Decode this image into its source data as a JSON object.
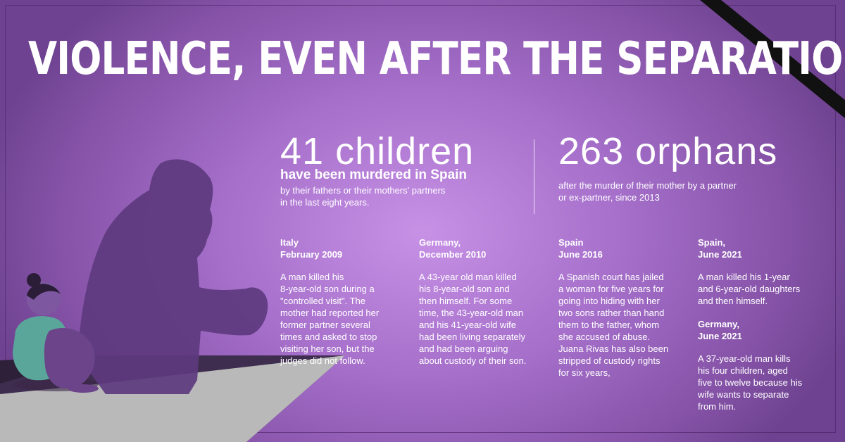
{
  "title": "VIOLENCE, EVEN AFTER THE SEPARATION",
  "stats": {
    "children": {
      "number": "41 children",
      "headline": "have been murdered in Spain",
      "detail_lines": [
        "by their fathers or their mothers' partners",
        "in the last eight years."
      ]
    },
    "orphans": {
      "number": "263 orphans",
      "detail_lines": [
        "after the murder of their mother by a partner",
        "or ex-partner, since 2013"
      ]
    }
  },
  "cases": [
    {
      "heading_lines": [
        "Italy",
        "February 2009"
      ],
      "body_lines": [
        "A man killed his",
        "8-year-old son during a",
        "\"controlled visit\". The",
        "mother had reported her",
        "former partner several",
        "times and asked to stop",
        "visiting her son, but the",
        "judges did not follow."
      ]
    },
    {
      "heading_lines": [
        "Germany,",
        "December 2010"
      ],
      "body_lines": [
        "A 43-year old man killed",
        "his 8-year-old son and",
        "then himself. For some",
        "time, the 43-year-old man",
        "and his 41-year-old wife",
        "had been living separately",
        "and had been arguing",
        "about custody of their son."
      ]
    },
    {
      "heading_lines": [
        "Spain",
        "June 2016"
      ],
      "body_lines": [
        "A Spanish court has jailed",
        "a woman for five years for",
        "going into hiding with her",
        "two sons rather than hand",
        "them to the father, whom",
        "she accused of abuse.",
        "Juana Rivas has also been",
        "stripped of custody rights",
        "for six years,"
      ]
    },
    {
      "heading_lines": [
        "Spain,",
        "June 2021"
      ],
      "body_lines": [
        "A man killed his 1-year",
        "and 6-year-old daughters",
        "and then himself."
      ]
    },
    {
      "heading_lines": [
        "Germany,",
        "June 2021"
      ],
      "body_lines": [
        "A 37-year-old man kills",
        "his four children, aged",
        "five to twelve because his",
        "wife wants to separate",
        "from him."
      ]
    }
  ],
  "colors": {
    "background_center": "#c791e6",
    "background_edge": "#6e4290",
    "shadow": "#5d3a7e",
    "mourning_ribbon": "#111111",
    "floor": "#b9b9b9",
    "floor_dark": "#3f2d4f",
    "child_sweater": "#5aa69a"
  },
  "icons": [
    "mourning-ribbon-icon",
    "shadow-silhouette-illustration",
    "crouching-child-illustration"
  ]
}
